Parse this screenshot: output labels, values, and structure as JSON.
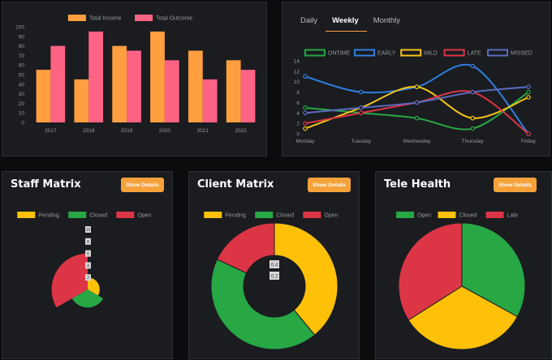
{
  "income_chart": {
    "legend": [
      "Total Income",
      "Total Outcome"
    ],
    "colors": {
      "income": "#ff9f40",
      "outcome": "#ff6384"
    }
  },
  "weekly_tabs": [
    "Daily",
    "Weekly",
    "Monthly"
  ],
  "weekly_active_tab": "Weekly",
  "staff": {
    "title": "Staff Matrix",
    "button": "Show Details"
  },
  "client": {
    "title": "Client Matrix",
    "button": "Show Details"
  },
  "tele": {
    "title": "Tele Health",
    "button": "Show Details"
  },
  "chart_data": [
    {
      "type": "bar",
      "categories": [
        "2017",
        "2018",
        "2019",
        "2020",
        "2021",
        "2022"
      ],
      "series": [
        {
          "name": "Total Income",
          "values": [
            55,
            45,
            80,
            95,
            75,
            65
          ],
          "color": "#ff9f40"
        },
        {
          "name": "Total Outcome",
          "values": [
            80,
            95,
            75,
            65,
            45,
            55
          ],
          "color": "#ff6384"
        }
      ],
      "ylim": [
        0,
        100
      ],
      "yticks": [
        0,
        10,
        20,
        30,
        40,
        50,
        60,
        70,
        80,
        90,
        100
      ],
      "grid": false,
      "legend_position": "top"
    },
    {
      "type": "line",
      "categories": [
        "Monday",
        "Tuesday",
        "Wednesday",
        "Thursday",
        "Friday"
      ],
      "series": [
        {
          "name": "ONTIME",
          "values": [
            5,
            4,
            3,
            1,
            8
          ],
          "color": "#28a745"
        },
        {
          "name": "EARLY",
          "values": [
            11,
            8,
            9,
            13,
            0
          ],
          "color": "#2f7fe0"
        },
        {
          "name": "MILD",
          "values": [
            1,
            5,
            9,
            3,
            7
          ],
          "color": "#f5c518"
        },
        {
          "name": "LATE",
          "values": [
            2,
            4,
            6,
            8,
            0
          ],
          "color": "#dc3545"
        },
        {
          "name": "MISSED",
          "values": [
            4,
            5,
            6,
            8,
            9
          ],
          "color": "#5b6bc0"
        }
      ],
      "ylim": [
        0,
        14
      ],
      "yticks": [
        0,
        2,
        4,
        6,
        8,
        10,
        12,
        14
      ],
      "grid": false,
      "legend_position": "top"
    },
    {
      "type": "pie",
      "variant": "polar-area",
      "title": "Staff Matrix",
      "labels": [
        "Pending",
        "Closed",
        "Open"
      ],
      "values": [
        2,
        3,
        6
      ],
      "colors": [
        "#ffc107",
        "#28a745",
        "#dc3545"
      ],
      "tick_labels": [
        "10",
        "8",
        "6",
        "4",
        "2"
      ]
    },
    {
      "type": "pie",
      "variant": "doughnut",
      "title": "Client Matrix",
      "labels": [
        "Pending",
        "Closed",
        "Open"
      ],
      "values": [
        39,
        43,
        18
      ],
      "colors": [
        "#ffc107",
        "#28a745",
        "#dc3545"
      ],
      "tick_labels": [
        "0.4",
        "0.2"
      ]
    },
    {
      "type": "pie",
      "title": "Tele Health",
      "labels": [
        "Open",
        "Closed",
        "Late"
      ],
      "values": [
        33,
        33,
        34
      ],
      "colors": [
        "#28a745",
        "#ffc107",
        "#dc3545"
      ]
    }
  ]
}
